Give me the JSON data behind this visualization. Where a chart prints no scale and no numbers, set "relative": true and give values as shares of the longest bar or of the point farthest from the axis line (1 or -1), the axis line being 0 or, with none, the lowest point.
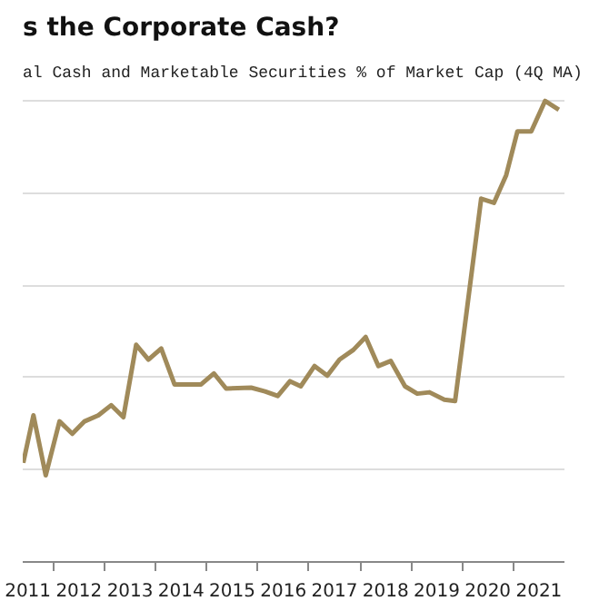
{
  "chart_data": {
    "type": "line",
    "title": "s the Corporate Cash?",
    "subtitle": "al Cash and Marketable Securities % of Market Cap (4Q MA)",
    "relative": true,
    "grid": "y",
    "marker": "none",
    "line_style": "solid",
    "xlim": [
      2011.4,
      2022.0
    ],
    "xticks": [
      {
        "value": 2011.5,
        "label": "2011"
      },
      {
        "value": 2012.5,
        "label": "2012"
      },
      {
        "value": 2013.5,
        "label": "2013"
      },
      {
        "value": 2014.5,
        "label": "2014"
      },
      {
        "value": 2015.5,
        "label": "2015"
      },
      {
        "value": 2016.5,
        "label": "2016"
      },
      {
        "value": 2017.5,
        "label": "2017"
      },
      {
        "value": 2018.5,
        "label": "2018"
      },
      {
        "value": 2019.5,
        "label": "2019"
      },
      {
        "value": 2020.5,
        "label": "2020"
      },
      {
        "value": 2021.5,
        "label": "2021"
      },
      {
        "value": 2012,
        "label": null
      },
      {
        "value": 2013,
        "label": null
      },
      {
        "value": 2014,
        "label": null
      },
      {
        "value": 2015,
        "label": null
      },
      {
        "value": 2016,
        "label": null
      },
      {
        "value": 2017,
        "label": null
      },
      {
        "value": 2018,
        "label": null
      },
      {
        "value": 2019,
        "label": null
      },
      {
        "value": 2020,
        "label": null
      },
      {
        "value": 2021,
        "label": null
      }
    ],
    "series": [
      {
        "color": "#a08a5a",
        "x": [
          2011.41,
          2011.61,
          2011.85,
          2012.12,
          2012.37,
          2012.61,
          2012.88,
          2013.13,
          2013.37,
          2013.62,
          2013.86,
          2014.11,
          2014.37,
          2014.89,
          2015.14,
          2015.38,
          2015.87,
          2016.14,
          2016.39,
          2016.63,
          2016.84,
          2017.11,
          2017.36,
          2017.6,
          2017.87,
          2018.11,
          2018.36,
          2018.6,
          2018.88,
          2019.12,
          2019.36,
          2019.65,
          2019.86,
          2020.1,
          2020.37,
          2020.62,
          2020.86,
          2021.08,
          2021.35,
          2021.62,
          2021.89
        ],
        "values": [
          0.215,
          0.318,
          0.188,
          0.305,
          0.278,
          0.305,
          0.318,
          0.34,
          0.314,
          0.471,
          0.439,
          0.463,
          0.385,
          0.385,
          0.409,
          0.376,
          0.378,
          0.37,
          0.36,
          0.392,
          0.381,
          0.425,
          0.404,
          0.439,
          0.46,
          0.488,
          0.425,
          0.436,
          0.381,
          0.365,
          0.368,
          0.352,
          0.349,
          0.555,
          0.788,
          0.779,
          0.839,
          0.934,
          0.934,
          1,
          0.981
        ]
      }
    ]
  }
}
